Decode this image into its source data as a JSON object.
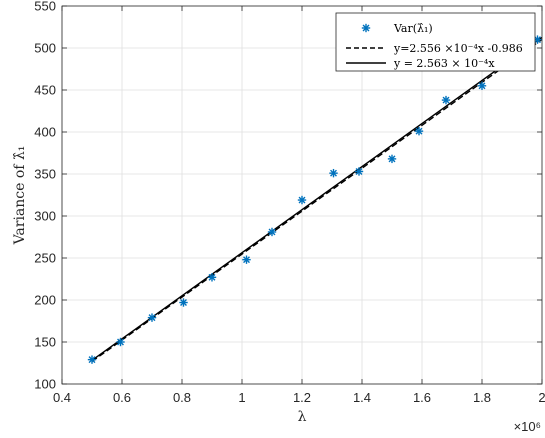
{
  "chart_data": {
    "type": "scatter",
    "xlabel": "λ",
    "ylabel": "Variance of λ̂₁",
    "x_exponent_label": "×10⁶",
    "xlim": [
      0.4,
      2.0
    ],
    "ylim": [
      100,
      550
    ],
    "x_ticks": [
      0.4,
      0.6,
      0.8,
      1.0,
      1.2,
      1.4,
      1.6,
      1.8,
      2.0
    ],
    "x_tick_labels": [
      "0.4",
      "0.6",
      "0.8",
      "1",
      "1.2",
      "1.4",
      "1.6",
      "1.8",
      "2"
    ],
    "y_ticks": [
      100,
      150,
      200,
      250,
      300,
      350,
      400,
      450,
      500,
      550
    ],
    "y_tick_labels": [
      "100",
      "150",
      "200",
      "250",
      "300",
      "350",
      "400",
      "450",
      "500",
      "550"
    ],
    "grid": true,
    "legend_position": "top-right",
    "series": [
      {
        "name": "Var(λ̂₁)",
        "style": "markers",
        "marker": "asterisk",
        "color": "#0072bd",
        "x": [
          0.5,
          0.595,
          0.7,
          0.805,
          0.9,
          1.015,
          1.1,
          1.2,
          1.305,
          1.39,
          1.5,
          1.59,
          1.68,
          1.8,
          1.985
        ],
        "y": [
          129,
          150,
          179,
          197,
          227,
          248,
          281,
          319,
          351,
          353,
          368,
          401,
          438,
          455,
          510
        ]
      },
      {
        "name": "y=2.556 ×10⁻⁴x -0.986",
        "style": "dashed",
        "color": "#000000",
        "slope_per_1e6": 255.6,
        "intercept": -0.986
      },
      {
        "name": "y = 2.563 × 10⁻⁴x",
        "style": "solid",
        "color": "#000000",
        "slope_per_1e6": 256.3,
        "intercept": 0
      }
    ]
  }
}
